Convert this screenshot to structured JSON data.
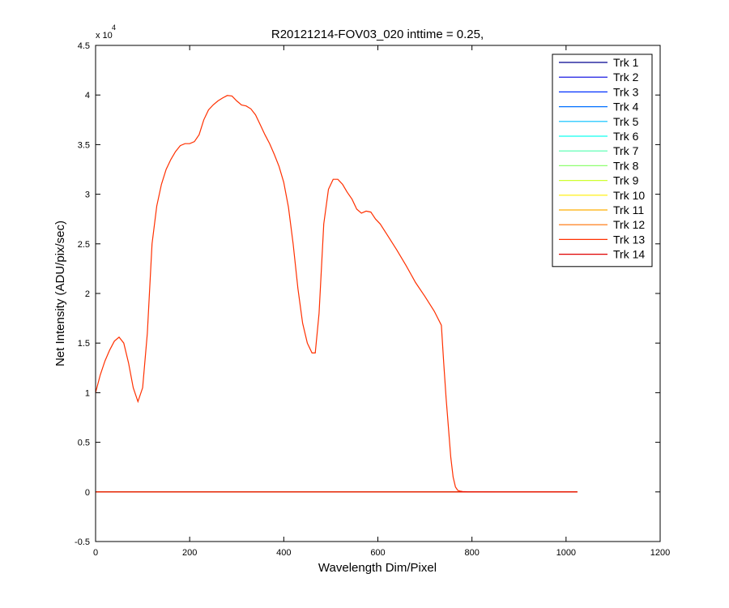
{
  "chart_data": {
    "type": "line",
    "title": "R20121214-FOV03_020 inttime = 0.25,",
    "xlabel": "Wavelength Dim/Pixel",
    "ylabel": "Net Intensity (ADU/pix/sec)",
    "y_exponent_label": "x 10",
    "y_exponent": "4",
    "xlim": [
      0,
      1200
    ],
    "ylim": [
      -0.5,
      4.5
    ],
    "y_scale_factor": 10000,
    "xticks": [
      "0",
      "200",
      "400",
      "600",
      "800",
      "1000",
      "1200"
    ],
    "yticks": [
      "-0.5",
      "0",
      "0.5",
      "1",
      "1.5",
      "2",
      "2.5",
      "3",
      "3.5",
      "4",
      "4.5"
    ],
    "grid": false,
    "legend_position": "top-right",
    "series": [
      {
        "name": "Trk 1",
        "color": "#00008f",
        "x": [
          0,
          1024
        ],
        "y": [
          0,
          0
        ]
      },
      {
        "name": "Trk 2",
        "color": "#0000df",
        "x": [
          0,
          1024
        ],
        "y": [
          0,
          0
        ]
      },
      {
        "name": "Trk 3",
        "color": "#0030ff",
        "x": [
          0,
          1024
        ],
        "y": [
          0,
          0
        ]
      },
      {
        "name": "Trk 4",
        "color": "#0070ff",
        "x": [
          0,
          1024
        ],
        "y": [
          0,
          0
        ]
      },
      {
        "name": "Trk 5",
        "color": "#00bfff",
        "x": [
          0,
          1024
        ],
        "y": [
          0,
          0
        ]
      },
      {
        "name": "Trk 6",
        "color": "#10ffef",
        "x": [
          0,
          1024
        ],
        "y": [
          0,
          0
        ]
      },
      {
        "name": "Trk 7",
        "color": "#50ffaf",
        "x": [
          0,
          1024
        ],
        "y": [
          0,
          0
        ]
      },
      {
        "name": "Trk 8",
        "color": "#8fff70",
        "x": [
          0,
          1024
        ],
        "y": [
          0,
          0
        ]
      },
      {
        "name": "Trk 9",
        "color": "#cfff30",
        "x": [
          0,
          1024
        ],
        "y": [
          0,
          0
        ]
      },
      {
        "name": "Trk 10",
        "color": "#ffef00",
        "x": [
          0,
          1024
        ],
        "y": [
          0,
          0
        ]
      },
      {
        "name": "Trk 11",
        "color": "#ffaf00",
        "x": [
          0,
          1024
        ],
        "y": [
          0,
          0
        ]
      },
      {
        "name": "Trk 12",
        "color": "#ff7000",
        "x": [
          0,
          1024
        ],
        "y": [
          0,
          0
        ]
      },
      {
        "name": "Trk 13",
        "color": "#ff3000",
        "color_note": "",
        "x": [
          0,
          10,
          20,
          30,
          40,
          50,
          60,
          70,
          80,
          90,
          100,
          110,
          120,
          130,
          140,
          150,
          160,
          170,
          180,
          190,
          200,
          210,
          220,
          230,
          240,
          250,
          260,
          270,
          280,
          290,
          300,
          310,
          320,
          330,
          340,
          350,
          360,
          370,
          380,
          390,
          400,
          410,
          420,
          430,
          440,
          450,
          460,
          467,
          475,
          485,
          495,
          505,
          515,
          525,
          535,
          545,
          555,
          565,
          575,
          585,
          595,
          605,
          620,
          640,
          660,
          680,
          700,
          720,
          735,
          740,
          745,
          750,
          755,
          760,
          765,
          770,
          775,
          780,
          790,
          800,
          850,
          900,
          950,
          1024
        ],
        "y": [
          10000,
          11800,
          13200,
          14300,
          15200,
          15600,
          15000,
          13000,
          10500,
          9100,
          10500,
          16000,
          25000,
          28800,
          31000,
          32500,
          33500,
          34300,
          34900,
          35100,
          35100,
          35300,
          36000,
          37500,
          38500,
          39000,
          39400,
          39700,
          39950,
          39900,
          39400,
          39000,
          38900,
          38600,
          38000,
          37000,
          36000,
          35100,
          34000,
          32800,
          31200,
          28700,
          25000,
          20500,
          17000,
          15000,
          14000,
          14000,
          18000,
          27000,
          30500,
          31500,
          31500,
          31000,
          30200,
          29500,
          28500,
          28100,
          28300,
          28200,
          27500,
          27000,
          25900,
          24400,
          22800,
          21100,
          19700,
          18200,
          16800,
          13000,
          9500,
          6500,
          3500,
          1500,
          500,
          150,
          80,
          40,
          15,
          5,
          0,
          0,
          0,
          0
        ]
      },
      {
        "name": "Trk 14",
        "color": "#df0000",
        "x": [
          0,
          1024
        ],
        "y": [
          0,
          0
        ]
      }
    ]
  }
}
